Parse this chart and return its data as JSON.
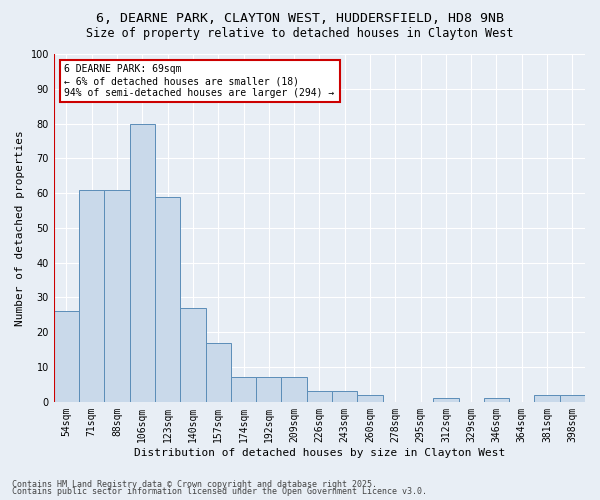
{
  "title1": "6, DEARNE PARK, CLAYTON WEST, HUDDERSFIELD, HD8 9NB",
  "title2": "Size of property relative to detached houses in Clayton West",
  "xlabel": "Distribution of detached houses by size in Clayton West",
  "ylabel": "Number of detached properties",
  "categories": [
    "54sqm",
    "71sqm",
    "88sqm",
    "106sqm",
    "123sqm",
    "140sqm",
    "157sqm",
    "174sqm",
    "192sqm",
    "209sqm",
    "226sqm",
    "243sqm",
    "260sqm",
    "278sqm",
    "295sqm",
    "312sqm",
    "329sqm",
    "346sqm",
    "364sqm",
    "381sqm",
    "398sqm"
  ],
  "values": [
    26,
    61,
    61,
    80,
    59,
    27,
    17,
    7,
    7,
    7,
    3,
    3,
    2,
    0,
    0,
    1,
    0,
    1,
    0,
    2,
    2
  ],
  "bar_color": "#c9d9ea",
  "bar_edge_color": "#5b8db8",
  "bg_color": "#e8eef5",
  "grid_color": "#ffffff",
  "annotation_line1": "6 DEARNE PARK: 69sqm",
  "annotation_line2": "← 6% of detached houses are smaller (18)",
  "annotation_line3": "94% of semi-detached houses are larger (294) →",
  "annotation_box_color": "#ffffff",
  "annotation_box_edge": "#cc0000",
  "ylim": [
    0,
    100
  ],
  "yticks": [
    0,
    10,
    20,
    30,
    40,
    50,
    60,
    70,
    80,
    90,
    100
  ],
  "footer1": "Contains HM Land Registry data © Crown copyright and database right 2025.",
  "footer2": "Contains public sector information licensed under the Open Government Licence v3.0.",
  "title_fontsize": 9.5,
  "subtitle_fontsize": 8.5,
  "axis_label_fontsize": 8,
  "tick_fontsize": 7,
  "annotation_fontsize": 7,
  "footer_fontsize": 6
}
